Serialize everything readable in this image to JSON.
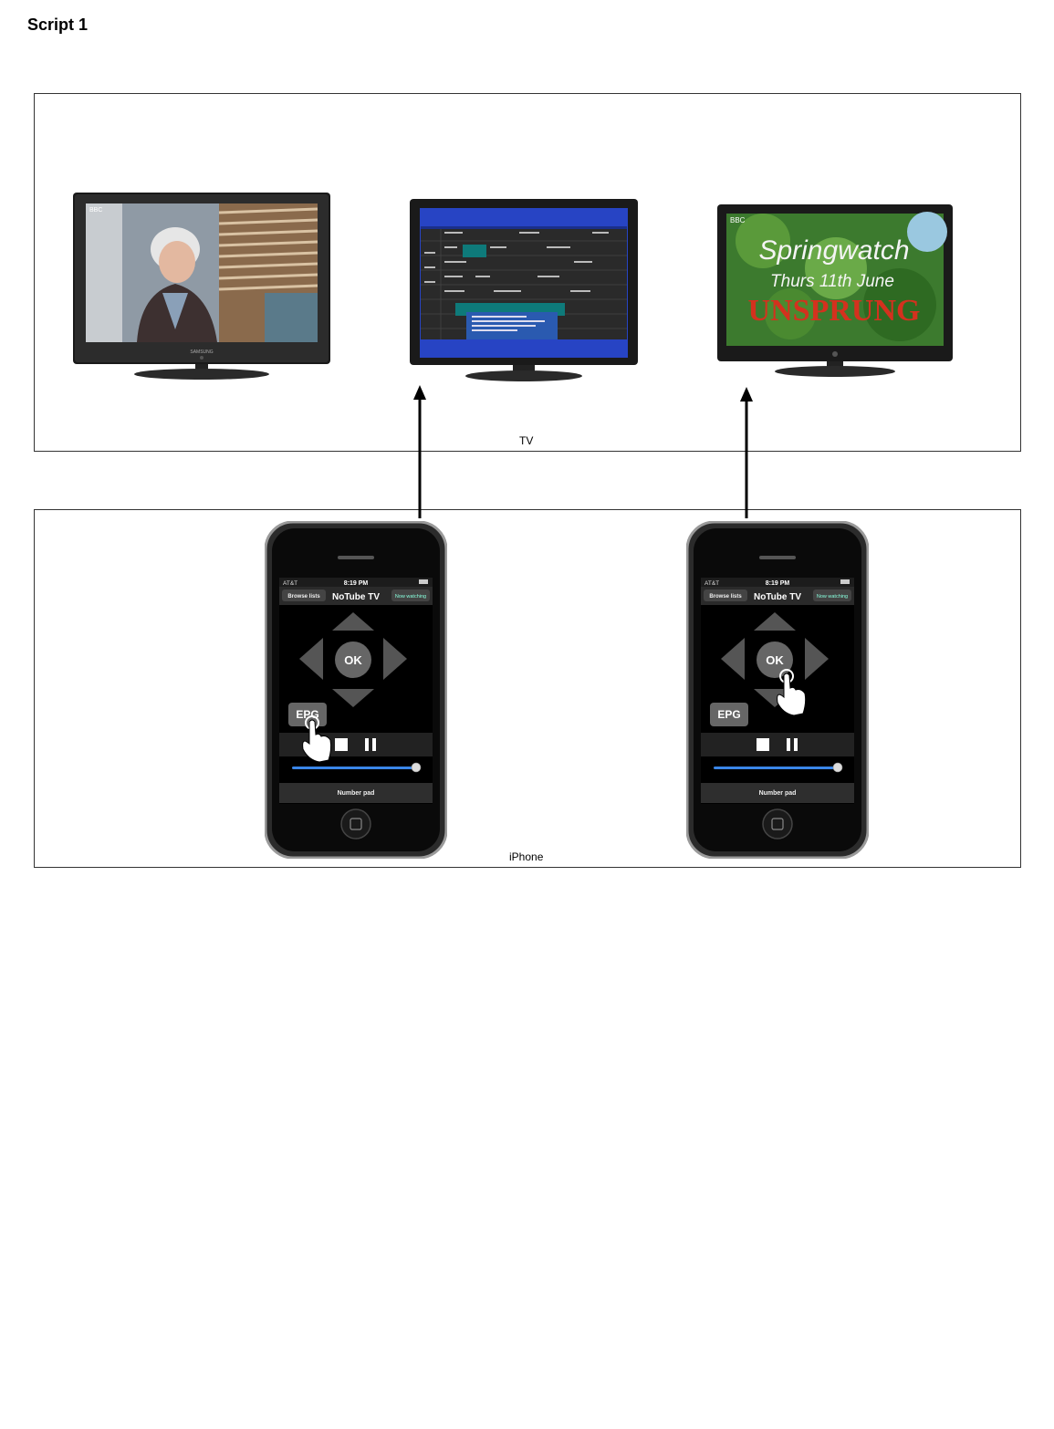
{
  "title": "Script 1",
  "tv_group": {
    "label": "TV",
    "tvs": [
      {
        "content": "live-broadcast",
        "channel_logo": "BBC"
      },
      {
        "content": "epg-grid"
      },
      {
        "content": "programme-card",
        "channel_logo": "BBC",
        "line1": "Springwatch",
        "line2": "Thurs 11th June",
        "line3": "UNSPRUNG"
      }
    ]
  },
  "iphone_group": {
    "label": "iPhone",
    "phones": [
      {
        "carrier": "AT&T",
        "time": "8:19 PM",
        "left_button": "Browse lists",
        "app_title": "NoTube TV",
        "right_button": "Now watching",
        "ok_label": "OK",
        "epg_label": "EPG",
        "number_pad_label": "Number pad",
        "tapped": "epg"
      },
      {
        "carrier": "AT&T",
        "time": "8:19 PM",
        "left_button": "Browse lists",
        "app_title": "NoTube TV",
        "right_button": "Now watching",
        "ok_label": "OK",
        "epg_label": "EPG",
        "number_pad_label": "Number pad",
        "tapped": "ok"
      }
    ]
  },
  "colors": {
    "epg_blue": "#2744c4",
    "teal": "#0e7a7a",
    "slider": "#3a86e8"
  }
}
